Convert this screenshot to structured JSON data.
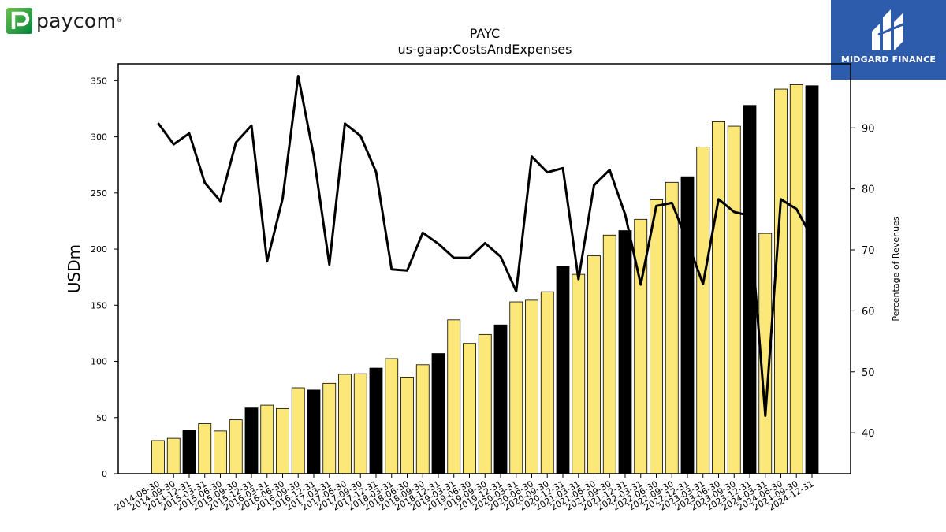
{
  "brand": {
    "name": "paycom",
    "registered": "®",
    "icon": "paycom-logo-icon"
  },
  "publisher": {
    "name": "MIDGARD FINANCE",
    "icon": "midgard-logo-icon",
    "color": "#2e5cac"
  },
  "chart_data": {
    "type": "bar+line",
    "title": "PAYC",
    "subtitle": "us-gaap:CostsAndExpenses",
    "ylabel": "USDm",
    "y2label": "Percentage of Revenues",
    "ylim": [
      0,
      365
    ],
    "y2lim": [
      33.3,
      100.5
    ],
    "yticks": [
      0,
      50,
      100,
      150,
      200,
      250,
      300,
      350
    ],
    "y2ticks": [
      40,
      50,
      60,
      70,
      80,
      90
    ],
    "colors": {
      "quarter": "#fbe878",
      "year_end": "#000000",
      "line": "#000000"
    },
    "categories": [
      "2014-06-30",
      "2014-09-30",
      "2014-12-31",
      "2015-03-31",
      "2015-06-30",
      "2015-09-30",
      "2015-12-31",
      "2016-03-31",
      "2016-06-30",
      "2016-09-30",
      "2016-12-31",
      "2017-03-31",
      "2017-06-30",
      "2017-09-30",
      "2017-12-31",
      "2018-03-31",
      "2018-06-30",
      "2018-09-30",
      "2018-12-31",
      "2019-03-31",
      "2019-06-30",
      "2019-09-30",
      "2019-12-31",
      "2020-03-31",
      "2020-06-30",
      "2020-09-30",
      "2020-12-31",
      "2021-03-31",
      "2021-06-30",
      "2021-09-30",
      "2021-12-31",
      "2022-03-31",
      "2022-06-30",
      "2022-09-30",
      "2022-12-31",
      "2023-03-31",
      "2023-06-30",
      "2023-09-30",
      "2023-12-31",
      "2024-03-31",
      "2024-06-30",
      "2024-09-30",
      "2024-12-31"
    ],
    "series": [
      {
        "kind": "bar",
        "values": [
          29.5,
          31.5,
          38.5,
          44.5,
          38,
          48,
          58.5,
          61,
          58,
          76.5,
          74.5,
          80.5,
          88.5,
          89,
          94,
          102.5,
          86,
          97,
          107,
          137,
          116,
          124,
          132.5,
          153,
          154.5,
          162,
          184.5,
          177.5,
          194,
          212.5,
          216.5,
          226.5,
          244,
          259.5,
          264.5,
          291,
          313.5,
          309.5,
          328,
          214,
          342.5,
          346.5,
          345.5
        ]
      },
      {
        "kind": "line",
        "values": [
          90.8,
          87.3,
          89.1,
          81.0,
          78.0,
          87.6,
          90.4,
          68.1,
          78.4,
          98.5,
          85.4,
          67.6,
          90.7,
          88.7,
          82.8,
          66.8,
          66.6,
          72.8,
          71.0,
          68.7,
          68.7,
          71.1,
          68.9,
          63.2,
          85.3,
          82.7,
          83.4,
          65.2,
          80.6,
          83.1,
          75.8,
          64.3,
          77.2,
          77.7,
          71.3,
          64.4,
          78.3,
          76.2,
          75.6,
          42.8,
          78.3,
          76.7,
          72.0
        ]
      }
    ]
  }
}
